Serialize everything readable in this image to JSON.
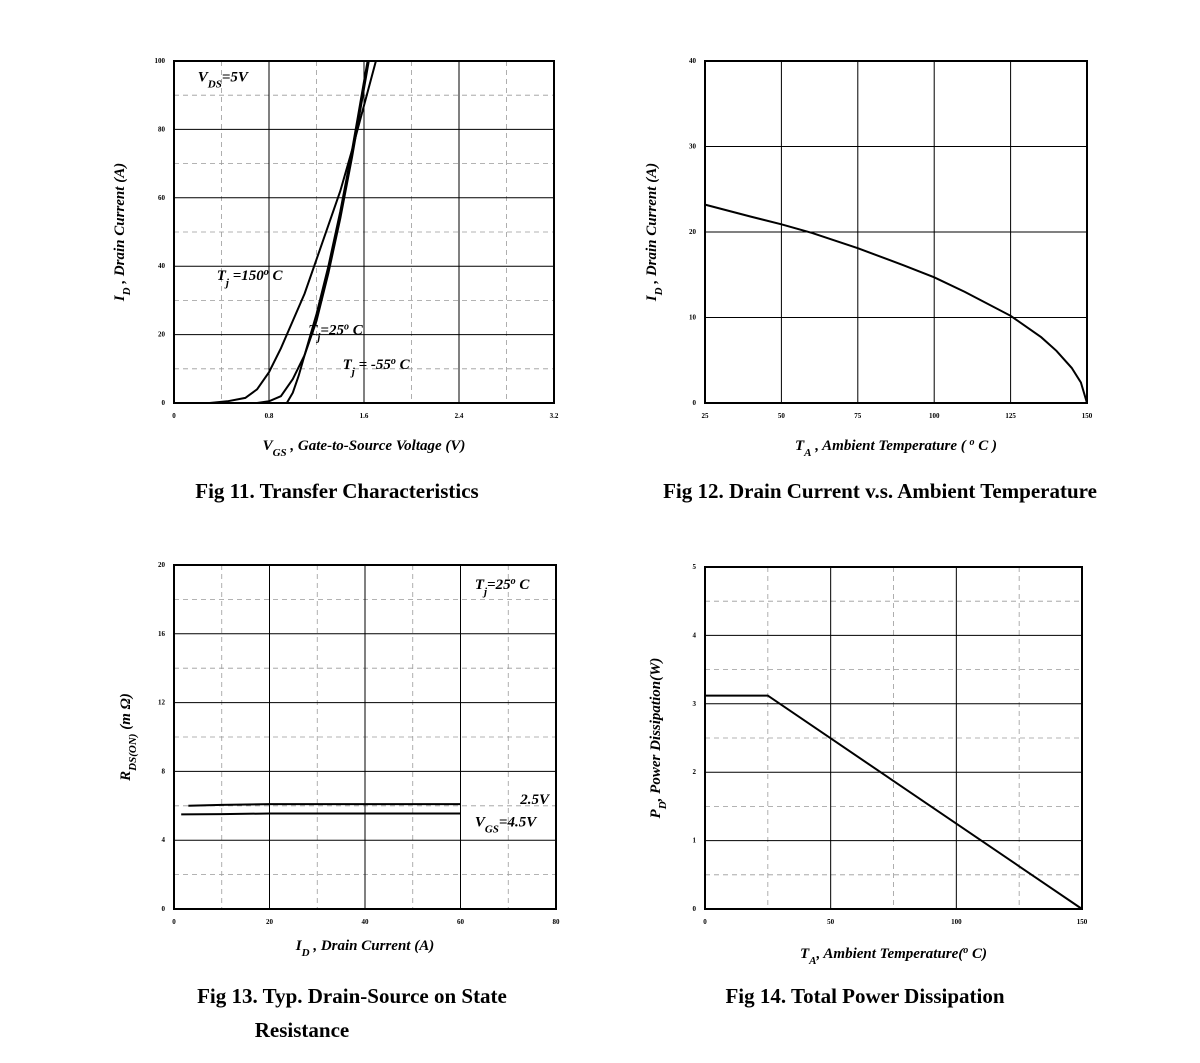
{
  "chart_data": [
    {
      "id": "fig11",
      "type": "line",
      "caption": "Fig 11. Transfer Characteristics",
      "xlabel": {
        "main": "V",
        "sub": "GS",
        "rest": " , Gate-to-Source Voltage (V)"
      },
      "ylabel": {
        "main": "I",
        "sub": "D",
        "rest": " , Drain Current (A)"
      },
      "xlim": [
        0,
        3.2
      ],
      "ylim": [
        0,
        100
      ],
      "xticks": [
        0,
        0.8,
        1.6,
        2.4,
        3.2
      ],
      "xtick_labels": [
        "0",
        "0.8",
        "1.6",
        "2.4",
        "3.2"
      ],
      "yticks": [
        0,
        20,
        40,
        60,
        80,
        100
      ],
      "ytick_labels": [
        "0",
        "20",
        "40",
        "60",
        "80",
        "100"
      ],
      "x_solid_grid": [
        0.8,
        1.6,
        2.4
      ],
      "x_dash_grid": [
        0.4,
        1.2,
        2.0,
        2.8
      ],
      "y_solid_grid": [
        20,
        40,
        60,
        80
      ],
      "y_dash_grid": [
        10,
        30,
        50,
        70,
        90
      ],
      "annotations": [
        {
          "text": "V_DS=5V",
          "parts": [
            [
              "V",
              ""
            ],
            [
              "DS",
              "sub"
            ],
            [
              "=5V",
              ""
            ]
          ],
          "x": 0.2,
          "y": 94
        },
        {
          "text": "T_j=150°C",
          "parts": [
            [
              "T",
              ""
            ],
            [
              "j",
              "sub"
            ],
            [
              " =150",
              ""
            ],
            [
              "o",
              "sup"
            ],
            [
              " C",
              ""
            ]
          ],
          "x": 0.36,
          "y": 36
        },
        {
          "text": "T_j=25°C",
          "parts": [
            [
              "T",
              ""
            ],
            [
              "j",
              "sub"
            ],
            [
              "=25",
              ""
            ],
            [
              "o",
              "sup"
            ],
            [
              " C",
              ""
            ]
          ],
          "x": 1.13,
          "y": 20
        },
        {
          "text": "T_j=-55°C",
          "parts": [
            [
              "T",
              ""
            ],
            [
              "j",
              "sub"
            ],
            [
              " = -55",
              ""
            ],
            [
              "o",
              "sup"
            ],
            [
              " C",
              ""
            ]
          ],
          "x": 1.42,
          "y": 10
        }
      ],
      "series": [
        {
          "key": "tj150",
          "x": [
            0.3,
            0.45,
            0.6,
            0.7,
            0.8,
            0.9,
            1.0,
            1.1,
            1.2,
            1.3,
            1.4,
            1.5,
            1.6,
            1.7
          ],
          "y": [
            0,
            0.5,
            1.5,
            4,
            9,
            16,
            24,
            32,
            42,
            52,
            62,
            74,
            87,
            100
          ]
        },
        {
          "key": "tj25",
          "x": [
            0.7,
            0.8,
            0.9,
            1.0,
            1.1,
            1.2,
            1.3,
            1.4,
            1.5,
            1.55,
            1.6,
            1.64
          ],
          "y": [
            0,
            0.5,
            2,
            7,
            14,
            24,
            38,
            54,
            72,
            82,
            92,
            100
          ]
        },
        {
          "key": "tjm55",
          "x": [
            0.95,
            1.0,
            1.05,
            1.1,
            1.2,
            1.3,
            1.4,
            1.5,
            1.55,
            1.6,
            1.63
          ],
          "y": [
            0,
            3,
            8,
            14,
            26,
            40,
            56,
            74,
            84,
            94,
            100
          ]
        }
      ]
    },
    {
      "id": "fig12",
      "type": "line",
      "caption": "Fig 12. Drain Current v.s. Ambient Temperature",
      "xlabel": {
        "main": "T",
        "sub": "A",
        "rest": " , Ambient Temperature ( ",
        "sup": "o",
        "rest2": " C )"
      },
      "ylabel": {
        "main": "I",
        "sub": "D",
        "rest": " , Drain Current (A)"
      },
      "xlim": [
        25,
        150
      ],
      "ylim": [
        0,
        40
      ],
      "xticks": [
        25,
        50,
        75,
        100,
        125,
        150
      ],
      "xtick_labels": [
        "25",
        "50",
        "75",
        "100",
        "125",
        "150"
      ],
      "yticks": [
        0,
        10,
        20,
        30,
        40
      ],
      "ytick_labels": [
        "0",
        "10",
        "20",
        "30",
        "40"
      ],
      "x_solid_grid": [
        50,
        75,
        100,
        125
      ],
      "x_dash_grid": [],
      "y_solid_grid": [
        10,
        20,
        30
      ],
      "y_dash_grid": [],
      "annotations": [],
      "series": [
        {
          "key": "id_ta",
          "x": [
            25,
            40,
            50,
            60,
            75,
            90,
            100,
            110,
            125,
            135,
            140,
            145,
            148,
            150
          ],
          "y": [
            23.2,
            21.8,
            20.9,
            19.9,
            18.1,
            16.1,
            14.7,
            13.0,
            10.2,
            7.7,
            6.1,
            4.1,
            2.4,
            0
          ]
        }
      ]
    },
    {
      "id": "fig13",
      "type": "line",
      "caption": "Fig 13. Typ. Drain-Source on State",
      "caption2": "Resistance",
      "xlabel": {
        "main": "I",
        "sub": "D",
        "rest": " , Drain Current (A)"
      },
      "ylabel": {
        "main": "R",
        "sub": "DS(ON)",
        "rest": " (m Ω)"
      },
      "xlim": [
        0,
        80
      ],
      "ylim": [
        0,
        20
      ],
      "xticks": [
        0,
        20,
        40,
        60,
        80
      ],
      "xtick_labels": [
        "0",
        "20",
        "40",
        "60",
        "80"
      ],
      "yticks": [
        0,
        4,
        8,
        12,
        16,
        20
      ],
      "ytick_labels": [
        "0",
        "4",
        "8",
        "12",
        "16",
        "20"
      ],
      "x_solid_grid": [
        20,
        40,
        60
      ],
      "x_dash_grid": [
        10,
        30,
        50,
        70
      ],
      "y_solid_grid": [
        4,
        8,
        12,
        16
      ],
      "y_dash_grid": [
        2,
        6,
        10,
        14,
        18
      ],
      "annotations": [
        {
          "text": "T_j=25°C",
          "parts": [
            [
              "T",
              ""
            ],
            [
              "j",
              "sub"
            ],
            [
              "=25",
              ""
            ],
            [
              "o",
              "sup"
            ],
            [
              " C",
              ""
            ]
          ],
          "x": 63,
          "y": 18.6
        },
        {
          "text": "2.5V",
          "parts": [
            [
              "2.5V",
              ""
            ]
          ],
          "x": 72.5,
          "y": 6.1
        },
        {
          "text": "V_GS=4.5V",
          "parts": [
            [
              "V",
              ""
            ],
            [
              "GS",
              "sub"
            ],
            [
              "=4.5V",
              ""
            ]
          ],
          "x": 63,
          "y": 4.8
        }
      ],
      "series": [
        {
          "key": "vgs25",
          "x": [
            3,
            10,
            20,
            30,
            40,
            50,
            60
          ],
          "y": [
            6.0,
            6.05,
            6.1,
            6.1,
            6.1,
            6.1,
            6.1
          ]
        },
        {
          "key": "vgs45",
          "x": [
            1.5,
            10,
            20,
            30,
            40,
            50,
            60
          ],
          "y": [
            5.5,
            5.52,
            5.55,
            5.55,
            5.55,
            5.55,
            5.55
          ]
        }
      ]
    },
    {
      "id": "fig14",
      "type": "line",
      "caption": "Fig 14. Total Power Dissipation",
      "xlabel": {
        "main": "T",
        "sub": "A",
        "rest": ", Ambient Temperature(",
        "sup": "o",
        "rest2": " C)"
      },
      "ylabel": {
        "main": "P",
        "sub": "D",
        "rest": ", Power Dissipation(W)"
      },
      "xlim": [
        0,
        150
      ],
      "ylim": [
        0,
        5
      ],
      "xticks": [
        0,
        50,
        100,
        150
      ],
      "xtick_labels": [
        "0",
        "50",
        "100",
        "150"
      ],
      "yticks": [
        0,
        1,
        2,
        3,
        4,
        5
      ],
      "ytick_labels": [
        "0",
        "1",
        "2",
        "3",
        "4",
        "5"
      ],
      "x_solid_grid": [
        50,
        100
      ],
      "x_dash_grid": [
        25,
        75,
        125
      ],
      "y_solid_grid": [
        1,
        2,
        3,
        4
      ],
      "y_dash_grid": [
        0.5,
        1.5,
        2.5,
        3.5,
        4.5
      ],
      "annotations": [],
      "series": [
        {
          "key": "pd",
          "x": [
            0,
            25,
            150
          ],
          "y": [
            3.12,
            3.12,
            0
          ]
        }
      ]
    }
  ]
}
